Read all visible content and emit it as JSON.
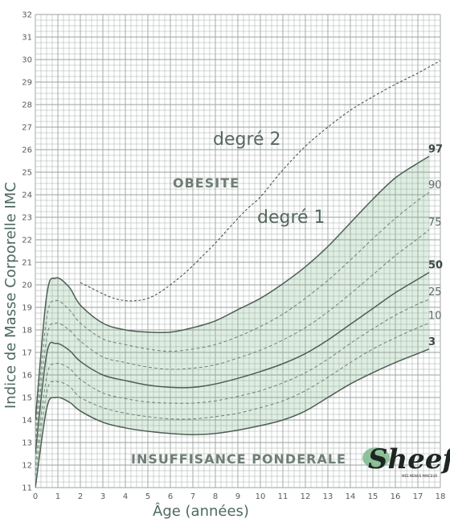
{
  "chart_data": {
    "type": "line",
    "xlabel": "Âge (années)",
    "ylabel": "Indice de Masse Corporelle IMC",
    "xlim": [
      0,
      18
    ],
    "ylim": [
      11,
      32
    ],
    "x_ticks": [
      "0",
      "1",
      "2",
      "3",
      "4",
      "5",
      "6",
      "7",
      "8",
      "9",
      "10",
      "11",
      "12",
      "13",
      "14",
      "15",
      "16",
      "17",
      "18"
    ],
    "y_ticks": [
      "11",
      "12",
      "13",
      "14",
      "15",
      "16",
      "17",
      "18",
      "19",
      "20",
      "21",
      "22",
      "23",
      "24",
      "25",
      "26",
      "27",
      "28",
      "29",
      "30",
      "31",
      "32"
    ],
    "x": [
      0,
      0.5,
      0.9,
      1.5,
      2,
      3,
      4,
      5,
      6,
      7,
      8,
      9,
      10,
      11,
      12,
      13,
      14,
      15,
      16,
      17,
      17.5
    ],
    "series": [
      {
        "name": "3",
        "values": [
          11.0,
          14.5,
          15.0,
          14.8,
          14.4,
          13.9,
          13.65,
          13.5,
          13.4,
          13.35,
          13.4,
          13.55,
          13.75,
          14.0,
          14.4,
          15.0,
          15.6,
          16.1,
          16.55,
          16.95,
          17.15
        ]
      },
      {
        "name": "10",
        "values": [
          11.5,
          15.2,
          15.7,
          15.5,
          15.0,
          14.55,
          14.3,
          14.15,
          14.05,
          14.05,
          14.15,
          14.3,
          14.55,
          14.85,
          15.3,
          15.9,
          16.55,
          17.15,
          17.65,
          18.1,
          18.3
        ]
      },
      {
        "name": "25",
        "values": [
          12.0,
          15.9,
          16.5,
          16.3,
          15.8,
          15.2,
          14.95,
          14.8,
          14.75,
          14.75,
          14.85,
          15.05,
          15.3,
          15.65,
          16.1,
          16.7,
          17.4,
          18.05,
          18.65,
          19.15,
          19.35
        ]
      },
      {
        "name": "50",
        "values": [
          12.5,
          16.9,
          17.4,
          17.1,
          16.6,
          16.0,
          15.75,
          15.55,
          15.45,
          15.45,
          15.6,
          15.85,
          16.15,
          16.5,
          16.95,
          17.55,
          18.25,
          18.95,
          19.65,
          20.25,
          20.55
        ]
      },
      {
        "name": "75",
        "values": [
          13.0,
          17.6,
          18.3,
          18.0,
          17.5,
          16.8,
          16.55,
          16.35,
          16.25,
          16.3,
          16.45,
          16.75,
          17.1,
          17.55,
          18.1,
          18.8,
          19.6,
          20.45,
          21.3,
          22.05,
          22.45
        ]
      },
      {
        "name": "90",
        "values": [
          13.5,
          18.5,
          19.3,
          18.9,
          18.3,
          17.6,
          17.35,
          17.15,
          17.05,
          17.15,
          17.35,
          17.7,
          18.15,
          18.7,
          19.4,
          20.2,
          21.1,
          22.05,
          22.95,
          23.75,
          24.1
        ]
      },
      {
        "name": "97",
        "values": [
          14.0,
          19.5,
          20.3,
          19.9,
          19.1,
          18.3,
          18.0,
          17.9,
          17.9,
          18.1,
          18.4,
          18.9,
          19.4,
          20.05,
          20.8,
          21.7,
          22.75,
          23.8,
          24.75,
          25.4,
          25.7
        ]
      }
    ],
    "threshold_obesity_2": {
      "x": [
        2,
        2.5,
        3,
        3.5,
        4,
        4.5,
        5,
        5.5,
        6,
        6.5,
        7,
        7.5,
        8,
        8.5,
        9,
        9.5,
        10,
        11,
        12,
        13,
        14,
        15,
        16,
        17,
        18
      ],
      "values": [
        20.1,
        19.85,
        19.6,
        19.4,
        19.3,
        19.3,
        19.4,
        19.65,
        20.0,
        20.4,
        20.85,
        21.35,
        21.85,
        22.4,
        22.95,
        23.45,
        23.9,
        25.1,
        26.15,
        27.0,
        27.75,
        28.35,
        28.9,
        29.4,
        29.95
      ]
    },
    "percentile_labels": [
      "97",
      "90",
      "75",
      "50",
      "25",
      "10",
      "3"
    ],
    "annotations": {
      "obesity_2": "degré 2",
      "obesity": "OBESITE",
      "obesity_1": "degré 1",
      "underweight": "INSUFFISANCE PONDERALE"
    },
    "colors": {
      "band_fill": "#daeddf",
      "major_line": "#4e5e56",
      "minor_line": "#6e8077",
      "grid": "#9aa29e",
      "threshold": "#3c4641"
    },
    "grid": true,
    "logo": {
      "text": "Sheef",
      "tagline": "MES MENUS MINCEUR",
      "accent": "#7cb98c"
    }
  }
}
